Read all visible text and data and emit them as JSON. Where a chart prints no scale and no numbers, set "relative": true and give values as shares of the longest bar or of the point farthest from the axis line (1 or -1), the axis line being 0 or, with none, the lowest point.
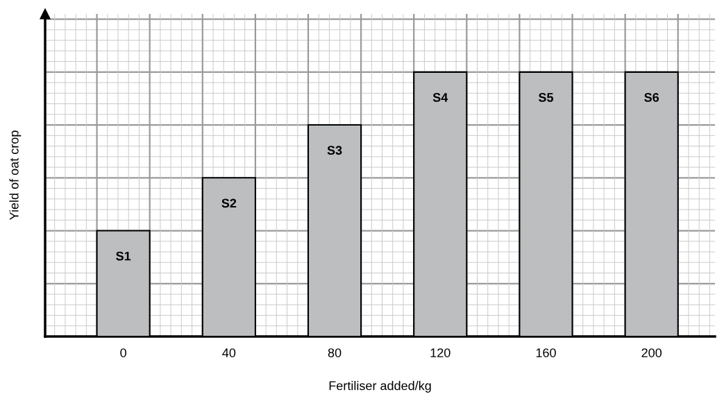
{
  "chart_data": {
    "type": "bar",
    "relative": true,
    "xlabel": "Fertiliser added/kg",
    "ylabel": "Yield of oat crop",
    "categories": [
      "0",
      "40",
      "80",
      "120",
      "160",
      "200"
    ],
    "values": [
      0.4,
      0.6,
      0.8,
      1,
      1,
      1
    ],
    "annotations": [
      "S1",
      "S2",
      "S3",
      "S4",
      "S5",
      "S6"
    ],
    "color": "#bcbec0",
    "grid": true
  }
}
